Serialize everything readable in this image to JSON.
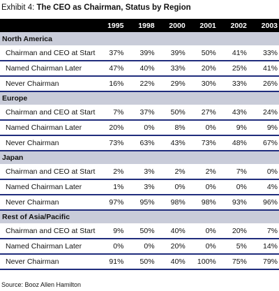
{
  "title": {
    "label": "Exhibit 4:",
    "text": "The CEO as Chairman, Status by Region"
  },
  "chart_data": {
    "type": "table",
    "columns": [
      "1995",
      "1998",
      "2000",
      "2001",
      "2002",
      "2003"
    ],
    "groups": [
      {
        "region": "North America",
        "rows": [
          {
            "label": "Chairman and CEO at Start",
            "values": [
              "37%",
              "39%",
              "39%",
              "50%",
              "41%",
              "33%"
            ]
          },
          {
            "label": "Named Chairman Later",
            "values": [
              "47%",
              "40%",
              "33%",
              "20%",
              "25%",
              "41%"
            ]
          },
          {
            "label": "Never Chairman",
            "values": [
              "16%",
              "22%",
              "29%",
              "30%",
              "33%",
              "26%"
            ]
          }
        ]
      },
      {
        "region": "Europe",
        "rows": [
          {
            "label": "Chairman and CEO at Start",
            "values": [
              "7%",
              "37%",
              "50%",
              "27%",
              "43%",
              "24%"
            ]
          },
          {
            "label": "Named Chairman Later",
            "values": [
              "20%",
              "0%",
              "8%",
              "0%",
              "9%",
              "9%"
            ]
          },
          {
            "label": "Never Chairman",
            "values": [
              "73%",
              "63%",
              "43%",
              "73%",
              "48%",
              "67%"
            ]
          }
        ]
      },
      {
        "region": "Japan",
        "rows": [
          {
            "label": "Chairman and CEO at Start",
            "values": [
              "2%",
              "3%",
              "2%",
              "2%",
              "7%",
              "0%"
            ]
          },
          {
            "label": "Named Chairman Later",
            "values": [
              "1%",
              "3%",
              "0%",
              "0%",
              "0%",
              "4%"
            ]
          },
          {
            "label": "Never Chairman",
            "values": [
              "97%",
              "95%",
              "98%",
              "98%",
              "93%",
              "96%"
            ]
          }
        ]
      },
      {
        "region": "Rest of Asia/Pacific",
        "rows": [
          {
            "label": "Chairman and CEO at Start",
            "values": [
              "9%",
              "50%",
              "40%",
              "0%",
              "20%",
              "7%"
            ]
          },
          {
            "label": "Named Chairman Later",
            "values": [
              "0%",
              "0%",
              "20%",
              "0%",
              "5%",
              "14%"
            ]
          },
          {
            "label": "Never Chairman",
            "values": [
              "91%",
              "50%",
              "40%",
              "100%",
              "75%",
              "79%"
            ]
          }
        ]
      }
    ]
  },
  "source": "Source: Booz Allen Hamilton",
  "colors": {
    "header_bg": "#000000",
    "region_bg": "#c9ccd9",
    "row_rule": "#1f2c7c"
  }
}
